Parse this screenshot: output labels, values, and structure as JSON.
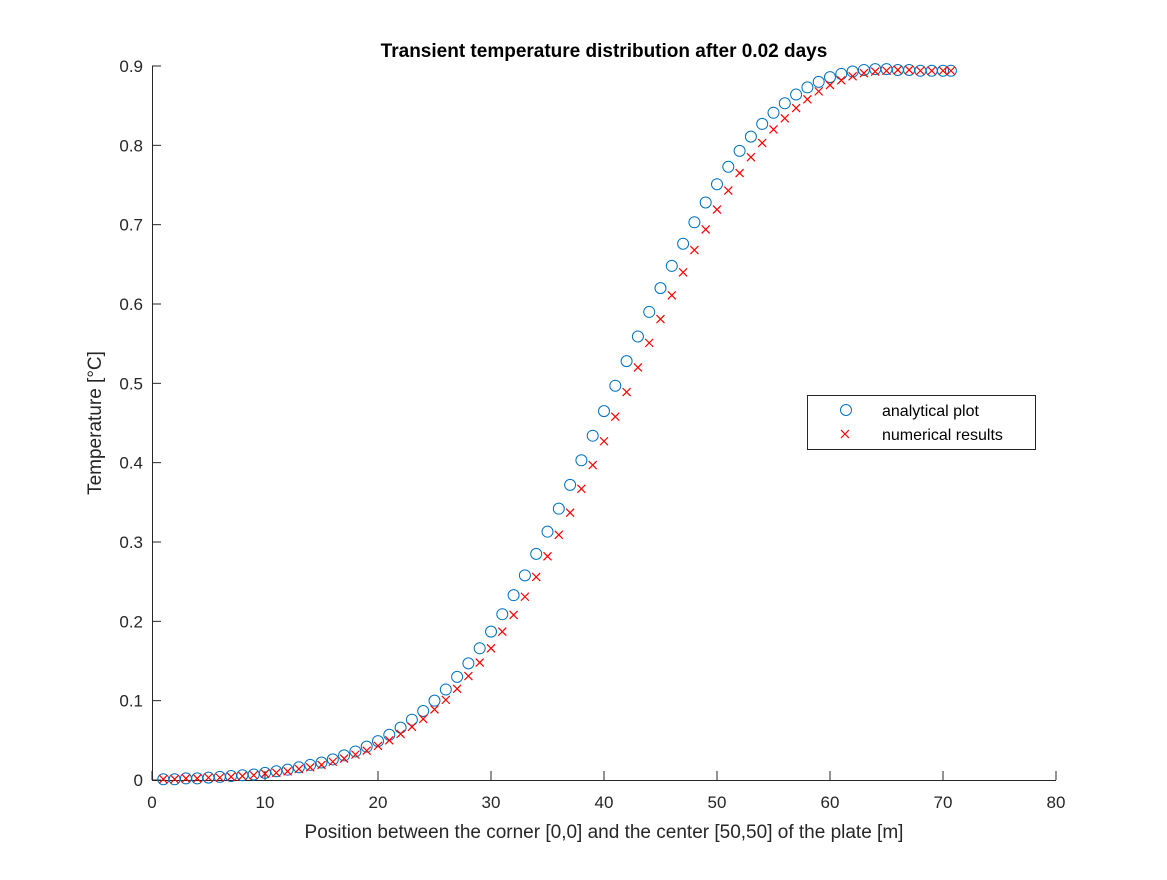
{
  "chart_data": {
    "type": "scatter",
    "title": "Transient temperature distribution after 0.02 days",
    "xlabel": "Position between the corner [0,0] and the center [50,50] of the plate [m]",
    "ylabel": "Temperature [°C]",
    "xlim": [
      0,
      80
    ],
    "ylim": [
      0,
      0.9
    ],
    "xticks": [
      0,
      10,
      20,
      30,
      40,
      50,
      60,
      70,
      80
    ],
    "yticks": [
      0,
      0.1,
      0.2,
      0.3,
      0.4,
      0.5,
      0.6,
      0.7,
      0.8,
      0.9
    ],
    "xtick_labels": [
      "0",
      "10",
      "20",
      "30",
      "40",
      "50",
      "60",
      "70",
      "80"
    ],
    "ytick_labels": [
      "0",
      "0.1",
      "0.2",
      "0.3",
      "0.4",
      "0.5",
      "0.6",
      "0.7",
      "0.8",
      "0.9"
    ],
    "grid": false,
    "legend_position": "right",
    "series": [
      {
        "name": "analytical plot",
        "marker": "circle",
        "color": "#0072BD",
        "x": [
          1.0,
          2.0,
          3.0,
          4.0,
          5.0,
          6.0,
          7.0,
          8.0,
          9.0,
          10.0,
          11.0,
          12.0,
          13.0,
          14.0,
          15.0,
          16.0,
          17.0,
          18.0,
          19.0,
          20.0,
          21.0,
          22.0,
          23.0,
          24.0,
          25.0,
          26.0,
          27.0,
          28.0,
          29.0,
          30.0,
          31.0,
          32.0,
          33.0,
          34.0,
          35.0,
          36.0,
          37.0,
          38.0,
          39.0,
          40.0,
          41.0,
          42.0,
          43.0,
          44.0,
          45.0,
          46.0,
          47.0,
          48.0,
          49.0,
          50.0,
          51.0,
          52.0,
          53.0,
          54.0,
          55.0,
          56.0,
          57.0,
          58.0,
          59.0,
          60.0,
          61.0,
          62.0,
          63.0,
          64.0,
          65.0,
          66.0,
          67.0,
          68.0,
          69.0,
          70.0,
          70.7
        ],
        "y": [
          0.001,
          0.001,
          0.002,
          0.002,
          0.003,
          0.004,
          0.005,
          0.006,
          0.007,
          0.009,
          0.011,
          0.013,
          0.016,
          0.019,
          0.022,
          0.026,
          0.031,
          0.036,
          0.042,
          0.049,
          0.057,
          0.066,
          0.076,
          0.087,
          0.1,
          0.114,
          0.13,
          0.147,
          0.166,
          0.187,
          0.209,
          0.233,
          0.258,
          0.285,
          0.313,
          0.342,
          0.372,
          0.403,
          0.434,
          0.465,
          0.497,
          0.528,
          0.559,
          0.59,
          0.62,
          0.648,
          0.676,
          0.703,
          0.728,
          0.751,
          0.773,
          0.793,
          0.811,
          0.827,
          0.841,
          0.853,
          0.864,
          0.873,
          0.88,
          0.886,
          0.89,
          0.893,
          0.895,
          0.896,
          0.896,
          0.895,
          0.895,
          0.894,
          0.894,
          0.894,
          0.894
        ]
      },
      {
        "name": "numerical results",
        "marker": "x",
        "color": "#FF0000",
        "x": [
          1.0,
          2.0,
          3.0,
          4.0,
          5.0,
          6.0,
          7.0,
          8.0,
          9.0,
          10.0,
          11.0,
          12.0,
          13.0,
          14.0,
          15.0,
          16.0,
          17.0,
          18.0,
          19.0,
          20.0,
          21.0,
          22.0,
          23.0,
          24.0,
          25.0,
          26.0,
          27.0,
          28.0,
          29.0,
          30.0,
          31.0,
          32.0,
          33.0,
          34.0,
          35.0,
          36.0,
          37.0,
          38.0,
          39.0,
          40.0,
          41.0,
          42.0,
          43.0,
          44.0,
          45.0,
          46.0,
          47.0,
          48.0,
          49.0,
          50.0,
          51.0,
          52.0,
          53.0,
          54.0,
          55.0,
          56.0,
          57.0,
          58.0,
          59.0,
          60.0,
          61.0,
          62.0,
          63.0,
          64.0,
          65.0,
          66.0,
          67.0,
          68.0,
          69.0,
          70.0,
          70.7
        ],
        "y": [
          0.001,
          0.001,
          0.002,
          0.002,
          0.003,
          0.003,
          0.004,
          0.005,
          0.006,
          0.008,
          0.009,
          0.011,
          0.014,
          0.016,
          0.019,
          0.023,
          0.027,
          0.032,
          0.037,
          0.043,
          0.05,
          0.058,
          0.067,
          0.077,
          0.089,
          0.101,
          0.115,
          0.131,
          0.148,
          0.166,
          0.187,
          0.208,
          0.231,
          0.256,
          0.282,
          0.309,
          0.337,
          0.367,
          0.397,
          0.427,
          0.458,
          0.489,
          0.52,
          0.551,
          0.581,
          0.611,
          0.64,
          0.668,
          0.694,
          0.719,
          0.743,
          0.765,
          0.785,
          0.803,
          0.82,
          0.834,
          0.847,
          0.858,
          0.868,
          0.876,
          0.882,
          0.887,
          0.891,
          0.893,
          0.894,
          0.895,
          0.895,
          0.894,
          0.894,
          0.894,
          0.894
        ]
      }
    ]
  }
}
